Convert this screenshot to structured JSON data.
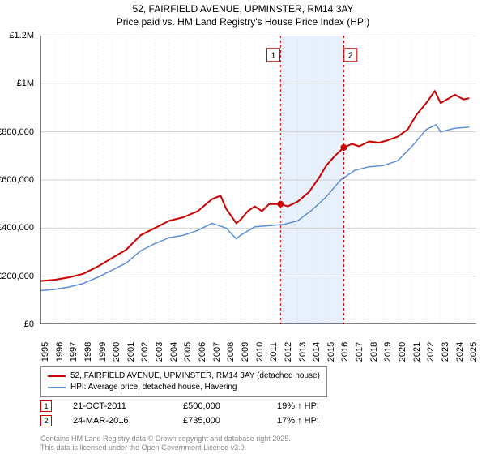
{
  "titles": {
    "main": "52, FAIRFIELD AVENUE, UPMINSTER, RM14 3AY",
    "sub": "Price paid vs. HM Land Registry's House Price Index (HPI)",
    "fontsize": 12,
    "color": "#000000"
  },
  "chart": {
    "type": "line",
    "background_color": "#ffffff",
    "grid_color": "#d0d0d0",
    "axis_color": "#000000",
    "x": {
      "min": 1995,
      "max": 2025.5,
      "ticks": [
        1995,
        1996,
        1997,
        1998,
        1999,
        2000,
        2001,
        2002,
        2003,
        2004,
        2005,
        2006,
        2007,
        2008,
        2009,
        2010,
        2011,
        2012,
        2013,
        2014,
        2015,
        2016,
        2017,
        2018,
        2019,
        2020,
        2021,
        2022,
        2023,
        2024,
        2025
      ],
      "label_fontsize": 11
    },
    "y": {
      "min": 0,
      "max": 1200000,
      "ticks": [
        0,
        200000,
        400000,
        600000,
        800000,
        1000000,
        1200000
      ],
      "tick_labels": [
        "£0",
        "£200,000",
        "£400,000",
        "£600,000",
        "£800,000",
        "£1M",
        "£1.2M"
      ],
      "label_fontsize": 11
    },
    "shaded_band": {
      "from": 2011.8,
      "to": 2016.23,
      "fill": "#e8f0fb"
    },
    "vlines": [
      {
        "x": 2011.8,
        "color": "#cc0000",
        "dash": true
      },
      {
        "x": 2016.23,
        "color": "#cc0000",
        "dash": true
      }
    ],
    "markers": [
      {
        "id": "1",
        "x": 2011.8,
        "y": 500000,
        "border": "#cc0000",
        "label_y": 1120000,
        "label_x": 2011.3
      },
      {
        "id": "2",
        "x": 2016.23,
        "y": 735000,
        "border": "#cc0000",
        "label_y": 1120000,
        "label_x": 2016.7
      }
    ],
    "series": [
      {
        "name": "price_paid",
        "legend": "52, FAIRFIELD AVENUE, UPMINSTER, RM14 3AY (detached house)",
        "color": "#cc0000",
        "width": 2,
        "points": [
          [
            1995,
            180000
          ],
          [
            1996,
            185000
          ],
          [
            1997,
            195000
          ],
          [
            1998,
            210000
          ],
          [
            1999,
            240000
          ],
          [
            2000,
            275000
          ],
          [
            2001,
            310000
          ],
          [
            2002,
            370000
          ],
          [
            2003,
            400000
          ],
          [
            2004,
            430000
          ],
          [
            2005,
            445000
          ],
          [
            2006,
            470000
          ],
          [
            2007,
            520000
          ],
          [
            2007.6,
            535000
          ],
          [
            2008,
            480000
          ],
          [
            2008.7,
            420000
          ],
          [
            2009,
            435000
          ],
          [
            2009.5,
            470000
          ],
          [
            2010,
            490000
          ],
          [
            2010.5,
            470000
          ],
          [
            2011,
            500000
          ],
          [
            2011.8,
            500000
          ],
          [
            2012.3,
            490000
          ],
          [
            2013,
            510000
          ],
          [
            2013.8,
            550000
          ],
          [
            2014.5,
            610000
          ],
          [
            2015,
            660000
          ],
          [
            2015.6,
            700000
          ],
          [
            2016.23,
            735000
          ],
          [
            2016.8,
            750000
          ],
          [
            2017.3,
            740000
          ],
          [
            2018,
            760000
          ],
          [
            2018.7,
            755000
          ],
          [
            2019.3,
            765000
          ],
          [
            2020,
            780000
          ],
          [
            2020.7,
            810000
          ],
          [
            2021.3,
            870000
          ],
          [
            2022,
            920000
          ],
          [
            2022.6,
            970000
          ],
          [
            2023,
            920000
          ],
          [
            2023.6,
            940000
          ],
          [
            2024,
            955000
          ],
          [
            2024.6,
            935000
          ],
          [
            2025,
            940000
          ]
        ]
      },
      {
        "name": "hpi",
        "legend": "HPI: Average price, detached house, Havering",
        "color": "#5b8fd6",
        "width": 1.5,
        "points": [
          [
            1995,
            140000
          ],
          [
            1996,
            145000
          ],
          [
            1997,
            155000
          ],
          [
            1998,
            170000
          ],
          [
            1999,
            195000
          ],
          [
            2000,
            225000
          ],
          [
            2001,
            255000
          ],
          [
            2002,
            305000
          ],
          [
            2003,
            335000
          ],
          [
            2004,
            360000
          ],
          [
            2005,
            370000
          ],
          [
            2006,
            390000
          ],
          [
            2007,
            420000
          ],
          [
            2008,
            400000
          ],
          [
            2008.7,
            355000
          ],
          [
            2009,
            370000
          ],
          [
            2010,
            405000
          ],
          [
            2011,
            410000
          ],
          [
            2012,
            415000
          ],
          [
            2013,
            430000
          ],
          [
            2014,
            475000
          ],
          [
            2015,
            530000
          ],
          [
            2016,
            600000
          ],
          [
            2017,
            640000
          ],
          [
            2018,
            655000
          ],
          [
            2019,
            660000
          ],
          [
            2020,
            680000
          ],
          [
            2021,
            740000
          ],
          [
            2022,
            810000
          ],
          [
            2022.7,
            830000
          ],
          [
            2023,
            800000
          ],
          [
            2024,
            815000
          ],
          [
            2025,
            820000
          ]
        ]
      }
    ]
  },
  "legend": {
    "border_color": "#888888",
    "fontsize": 10
  },
  "sales": [
    {
      "id": "1",
      "date": "21-OCT-2011",
      "price": "£500,000",
      "delta": "19% ↑ HPI",
      "border": "#cc0000"
    },
    {
      "id": "2",
      "date": "24-MAR-2016",
      "price": "£735,000",
      "delta": "17% ↑ HPI",
      "border": "#cc0000"
    }
  ],
  "footer": {
    "line1": "Contains HM Land Registry data © Crown copyright and database right 2025.",
    "line2": "This data is licensed under the Open Government Licence v3.0.",
    "color": "#888888",
    "fontsize": 9
  }
}
